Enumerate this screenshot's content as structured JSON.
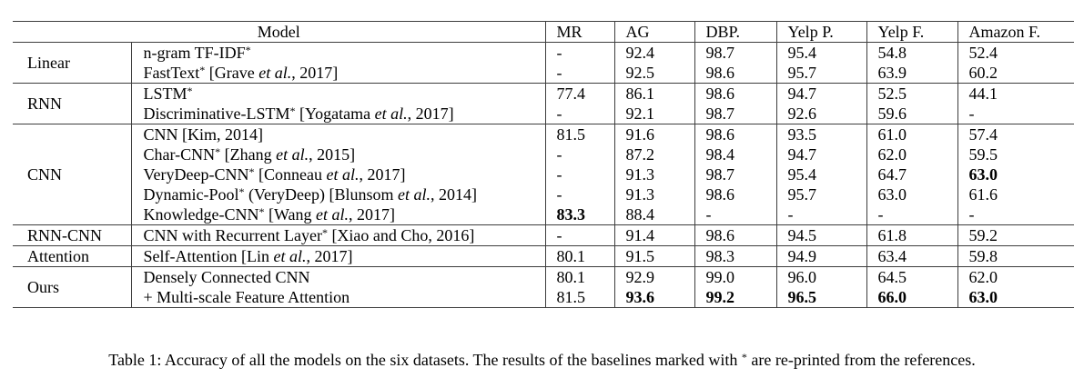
{
  "colors": {
    "background": "#ffffff",
    "text": "#000000",
    "rule": "#3d3d3d"
  },
  "page": {
    "caption": [
      [
        "Table 1: Accuracy of all the models on the six datasets. The results of the baselines marked with ",
        "n"
      ],
      [
        "*",
        "s"
      ],
      [
        " are re-printed from the references.",
        "n"
      ]
    ]
  },
  "table": {
    "header": {
      "model": "Model",
      "datasets": [
        "MR",
        "AG",
        "DBP.",
        "Yelp P.",
        "Yelp F.",
        "Amazon F."
      ]
    },
    "groups": [
      {
        "category": "Linear",
        "rows": [
          {
            "label": [
              [
                "n-gram TF-IDF",
                "n"
              ],
              [
                "*",
                "s"
              ]
            ],
            "values": [
              "-",
              "92.4",
              "98.7",
              "95.4",
              "54.8",
              "52.4"
            ]
          },
          {
            "label": [
              [
                "FastText",
                "n"
              ],
              [
                "*",
                "s"
              ],
              [
                " [Grave ",
                "n"
              ],
              [
                "et al.",
                "i"
              ],
              [
                ", 2017]",
                "n"
              ]
            ],
            "values": [
              "-",
              "92.5",
              "98.6",
              "95.7",
              "63.9",
              "60.2"
            ]
          }
        ]
      },
      {
        "category": "RNN",
        "rows": [
          {
            "label": [
              [
                "LSTM",
                "n"
              ],
              [
                "*",
                "s"
              ]
            ],
            "values": [
              "77.4",
              "86.1",
              "98.6",
              "94.7",
              "52.5",
              "44.1"
            ]
          },
          {
            "label": [
              [
                "Discriminative-LSTM",
                "n"
              ],
              [
                "*",
                "s"
              ],
              [
                " [Yogatama ",
                "n"
              ],
              [
                "et al.",
                "i"
              ],
              [
                ", 2017]",
                "n"
              ]
            ],
            "values": [
              "-",
              "92.1",
              "98.7",
              "92.6",
              "59.6",
              "-"
            ]
          }
        ]
      },
      {
        "category": "CNN",
        "rows": [
          {
            "label": [
              [
                "CNN [Kim, 2014]",
                "n"
              ]
            ],
            "values": [
              "81.5",
              "91.6",
              "98.6",
              "93.5",
              "61.0",
              "57.4"
            ]
          },
          {
            "label": [
              [
                "Char-CNN",
                "n"
              ],
              [
                "*",
                "s"
              ],
              [
                " [Zhang ",
                "n"
              ],
              [
                "et al.",
                "i"
              ],
              [
                ", 2015]",
                "n"
              ]
            ],
            "values": [
              "-",
              "87.2",
              "98.4",
              "94.7",
              "62.0",
              "59.5"
            ]
          },
          {
            "label": [
              [
                "VeryDeep-CNN",
                "n"
              ],
              [
                "*",
                "s"
              ],
              [
                " [Conneau ",
                "n"
              ],
              [
                "et al.",
                "i"
              ],
              [
                ", 2017]",
                "n"
              ]
            ],
            "values": [
              "-",
              "91.3",
              "98.7",
              "95.4",
              "64.7",
              "63.0"
            ],
            "bold": [
              false,
              false,
              false,
              false,
              false,
              true
            ]
          },
          {
            "label": [
              [
                "Dynamic-Pool",
                "n"
              ],
              [
                "*",
                "s"
              ],
              [
                " (VeryDeep) [Blunsom ",
                "n"
              ],
              [
                "et al.",
                "i"
              ],
              [
                ", 2014]",
                "n"
              ]
            ],
            "values": [
              "-",
              "91.3",
              "98.6",
              "95.7",
              "63.0",
              "61.6"
            ]
          },
          {
            "label": [
              [
                "Knowledge-CNN",
                "n"
              ],
              [
                "*",
                "s"
              ],
              [
                " [Wang ",
                "n"
              ],
              [
                "et al.",
                "i"
              ],
              [
                ", 2017]",
                "n"
              ]
            ],
            "values": [
              "83.3",
              "88.4",
              "-",
              "-",
              "-",
              "-"
            ],
            "bold": [
              true,
              false,
              false,
              false,
              false,
              false
            ]
          }
        ]
      },
      {
        "category": "RNN-CNN",
        "rows": [
          {
            "label": [
              [
                "CNN with Recurrent Layer",
                "n"
              ],
              [
                "*",
                "s"
              ],
              [
                " [Xiao and Cho, 2016]",
                "n"
              ]
            ],
            "values": [
              "-",
              "91.4",
              "98.6",
              "94.5",
              "61.8",
              "59.2"
            ]
          }
        ]
      },
      {
        "category": "Attention",
        "rows": [
          {
            "label": [
              [
                "Self-Attention [Lin ",
                "n"
              ],
              [
                "et al.",
                "i"
              ],
              [
                ", 2017]",
                "n"
              ]
            ],
            "values": [
              "80.1",
              "91.5",
              "98.3",
              "94.9",
              "63.4",
              "59.8"
            ]
          }
        ]
      },
      {
        "category": "Ours",
        "rows": [
          {
            "label": [
              [
                "Densely Connected CNN",
                "n"
              ]
            ],
            "values": [
              "80.1",
              "92.9",
              "99.0",
              "96.0",
              "64.5",
              "62.0"
            ]
          },
          {
            "label": [
              [
                "+ Multi-scale Feature Attention",
                "n"
              ]
            ],
            "values": [
              "81.5",
              "93.6",
              "99.2",
              "96.5",
              "66.0",
              "63.0"
            ],
            "bold": [
              false,
              true,
              true,
              true,
              true,
              true
            ]
          }
        ]
      }
    ]
  }
}
